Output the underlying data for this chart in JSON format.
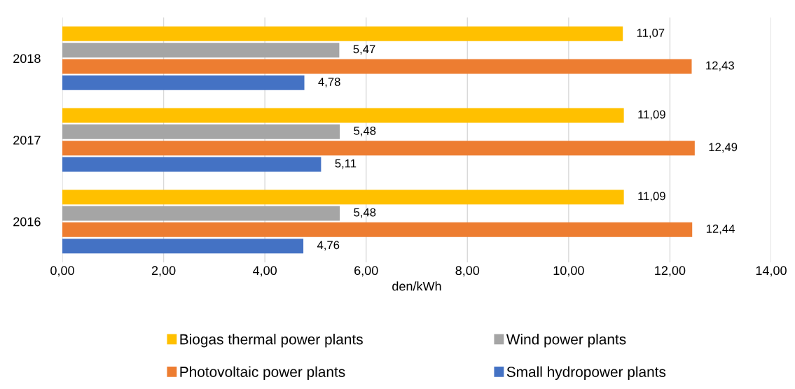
{
  "chart_data": {
    "type": "bar",
    "orientation": "horizontal",
    "xlabel": "den/kWh",
    "categories": [
      "2018",
      "2017",
      "2016"
    ],
    "series": [
      {
        "name": "Biogas thermal power plants",
        "color": "#ffc000",
        "values": [
          11.07,
          11.09,
          11.09
        ],
        "value_labels": [
          "11,07",
          "11,09",
          "11,09"
        ]
      },
      {
        "name": "Wind power plants",
        "color": "#a5a5a5",
        "values": [
          5.47,
          5.48,
          5.48
        ],
        "value_labels": [
          "5,47",
          "5,48",
          "5,48"
        ]
      },
      {
        "name": "Photovoltaic power plants",
        "color": "#ed7d31",
        "values": [
          12.43,
          12.49,
          12.44
        ],
        "value_labels": [
          "12,43",
          "12,49",
          "12,44"
        ]
      },
      {
        "name": "Small hydropower plants",
        "color": "#4472c4",
        "values": [
          4.78,
          5.11,
          4.76
        ],
        "value_labels": [
          "4,78",
          "5,11",
          "4,76"
        ]
      }
    ],
    "xlim": [
      0,
      14
    ],
    "xticks": [
      {
        "value": 0,
        "label": "0,00"
      },
      {
        "value": 2,
        "label": "2,00"
      },
      {
        "value": 4,
        "label": "4,00"
      },
      {
        "value": 6,
        "label": "6,00"
      },
      {
        "value": 8,
        "label": "8,00"
      },
      {
        "value": 10,
        "label": "10,00"
      },
      {
        "value": 12,
        "label": "12,00"
      },
      {
        "value": 14,
        "label": "14,00"
      }
    ],
    "grid": "x",
    "legend": "bottom"
  }
}
